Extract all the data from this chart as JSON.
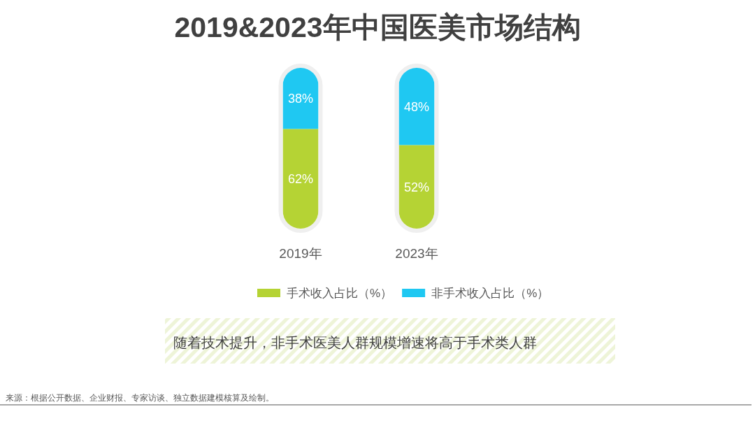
{
  "chart_data": {
    "type": "bar",
    "title": "2019&2023年中国医美市场结构",
    "categories": [
      "2019年",
      "2023年"
    ],
    "stacked": true,
    "series": [
      {
        "name": "手术收入占比（%）",
        "color": "#b5d334",
        "values": [
          62,
          52
        ],
        "value_labels": [
          "62%",
          "52%"
        ]
      },
      {
        "name": "非手术收入占比（%）",
        "color": "#1fc8f2",
        "values": [
          38,
          48
        ],
        "value_labels": [
          "38%",
          "48%"
        ]
      }
    ],
    "legend": "bottom",
    "annotations": [
      "随着技术提升，非手术医美人群规模增速将高于手术类人群",
      "来源：根据公开数据、企业财报、专家访谈、独立数据建模核算及绘制。"
    ]
  }
}
